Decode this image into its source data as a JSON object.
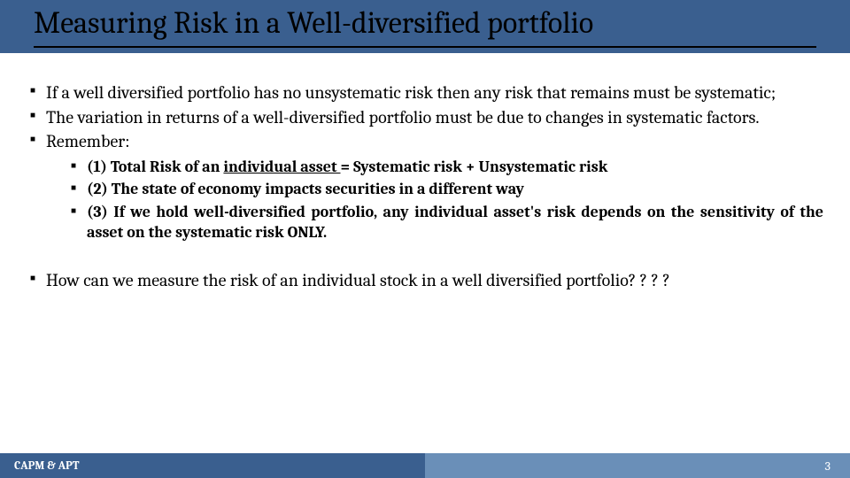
{
  "title": "Measuring Risk in a Well-diversified portfolio",
  "bullets": {
    "b1": "If a well diversified portfolio has no unsystematic risk then any risk that remains must be systematic;",
    "b2": "The variation in returns of a well-diversified portfolio must be due to changes in systematic factors.",
    "b3": "Remember:",
    "s1a": "(1) Total Risk of an ",
    "s1b": "individual asset ",
    "s1c": "= Systematic risk + Unsystematic risk",
    "s2": "(2) The state of economy impacts securities in a different way",
    "s3": "(3) If we hold well-diversified portfolio, any individual asset's risk depends on the sensitivity of the asset on the systematic risk ONLY.",
    "b4": "How can we measure the risk of an individual stock in a well diversified portfolio? ? ? ?"
  },
  "footer": {
    "left": "CAPM & APT",
    "page": "3"
  },
  "colors": {
    "band": "#3a5f8f",
    "band_light": "#6a8fb8",
    "text": "#000000",
    "white": "#ffffff"
  }
}
